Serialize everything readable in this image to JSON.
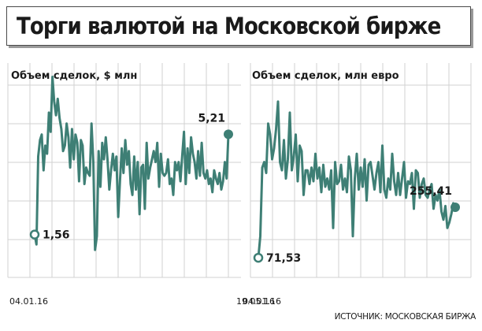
{
  "title": "Торги валютой на Московской бирже",
  "source": "ИСТОЧНИК: МОСКОВСКАЯ БИРЖА",
  "colors": {
    "line": "#3e7f75",
    "grid": "#d2d2d2",
    "text": "#1a1a1a"
  },
  "chart_data": [
    {
      "type": "line",
      "title": "Объем сделок, $ млн",
      "ylim": [
        0,
        7
      ],
      "grid": true,
      "x_tick_labels": [
        "04.01.16",
        "19.05.16"
      ],
      "start_label": "1,56",
      "end_label": "5,21",
      "series": [
        {
          "values": [
            1.56,
            1.2,
            4.4,
            5.0,
            5.2,
            3.9,
            4.8,
            4.5,
            6.0,
            5.3,
            7.3,
            6.4,
            5.9,
            6.5,
            5.8,
            5.4,
            4.6,
            4.8,
            5.6,
            5.1,
            4.0,
            5.4,
            4.3,
            5.2,
            4.9,
            3.5,
            5.0,
            4.8,
            3.4,
            4.0,
            3.8,
            3.7,
            5.6,
            4.2,
            1.0,
            1.5,
            4.6,
            3.3,
            4.9,
            4.3,
            5.1,
            4.3,
            3.2,
            3.9,
            4.5,
            3.9,
            4.4,
            2.2,
            3.5,
            4.7,
            3.8,
            5.0,
            4.1,
            4.6,
            3.4,
            3.0,
            4.4,
            3.2,
            4.2,
            2.3,
            4.0,
            4.1,
            2.5,
            4.9,
            3.6,
            4.0,
            4.3,
            4.6,
            4.2,
            4.9,
            3.3,
            4.5,
            3.8,
            3.7,
            3.8,
            4.3,
            3.4,
            3.6,
            3.0,
            4.2,
            3.9,
            4.2,
            3.5,
            4.4,
            5.3,
            3.4,
            4.7,
            3.8,
            5.1,
            4.5,
            4.2,
            3.6,
            4.6,
            3.7,
            4.9,
            3.8,
            3.6,
            3.9,
            3.4,
            3.6,
            3.1,
            3.9,
            3.6,
            3.4,
            3.8,
            3.2,
            3.5,
            4.2,
            3.6,
            5.21
          ]
        }
      ]
    },
    {
      "type": "line",
      "title": "Объем сделок, млн евро",
      "ylim": [
        0,
        700
      ],
      "grid": true,
      "x_tick_labels": [
        "04.01.16"
      ],
      "start_label": "71,53",
      "end_label": "255,41",
      "series": [
        {
          "values": [
            71.53,
            150,
            400,
            420,
            380,
            560,
            520,
            430,
            470,
            540,
            640,
            420,
            390,
            500,
            360,
            430,
            600,
            390,
            440,
            520,
            350,
            480,
            460,
            300,
            390,
            390,
            340,
            400,
            350,
            450,
            360,
            400,
            310,
            410,
            330,
            360,
            320,
            390,
            180,
            420,
            340,
            350,
            410,
            320,
            360,
            310,
            440,
            390,
            150,
            360,
            450,
            320,
            400,
            330,
            430,
            280,
            410,
            420,
            370,
            320,
            380,
            420,
            310,
            480,
            320,
            290,
            360,
            320,
            450,
            350,
            300,
            380,
            300,
            360,
            420,
            290,
            350,
            340,
            380,
            250,
            390,
            380,
            290,
            340,
            360,
            300,
            290,
            320,
            340,
            250,
            300,
            280,
            320,
            240,
            210,
            260,
            180,
            200,
            230,
            270,
            255.41
          ]
        }
      ]
    }
  ]
}
